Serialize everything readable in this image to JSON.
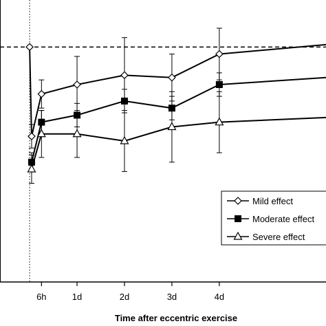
{
  "chart_data": {
    "type": "line",
    "title": "",
    "xlabel": "Time after eccentric exercise",
    "ylabel": "",
    "x_ticks": [
      {
        "x": 6,
        "label": "6h"
      },
      {
        "x": 24,
        "label": "1d"
      },
      {
        "x": 48,
        "label": "2d"
      },
      {
        "x": 72,
        "label": "3d"
      },
      {
        "x": 96,
        "label": "4d"
      }
    ],
    "xlim": [
      -15,
      150
    ],
    "ylim": [
      0,
      120
    ],
    "reference_line": {
      "y": 100,
      "style": "dashed"
    },
    "exercise_line": {
      "x": 0,
      "style": "dotted"
    },
    "legend_position": "lower-right",
    "series": [
      {
        "name": "Mild effect",
        "marker": "diamond",
        "fill": "#ffffff",
        "x": [
          0,
          1,
          6,
          24,
          48,
          72,
          96,
          150
        ],
        "y": [
          100,
          62,
          80,
          84,
          88,
          87,
          97,
          101
        ],
        "err": [
          0,
          5,
          6,
          12,
          16,
          10,
          11,
          0
        ]
      },
      {
        "name": "Moderate effect",
        "marker": "square",
        "fill": "#000000",
        "x": [
          1,
          6,
          24,
          48,
          72,
          96,
          150
        ],
        "y": [
          51,
          68,
          71,
          77,
          74,
          84,
          87
        ],
        "err": [
          4,
          5,
          5,
          5,
          5,
          5,
          0
        ]
      },
      {
        "name": "Severe effect",
        "marker": "triangle",
        "fill": "#ffffff",
        "x": [
          1,
          6,
          24,
          48,
          72,
          96,
          150
        ],
        "y": [
          48,
          63,
          63,
          60,
          66,
          68,
          70
        ],
        "err": [
          6,
          10,
          10,
          13,
          15,
          13,
          0
        ]
      }
    ]
  }
}
